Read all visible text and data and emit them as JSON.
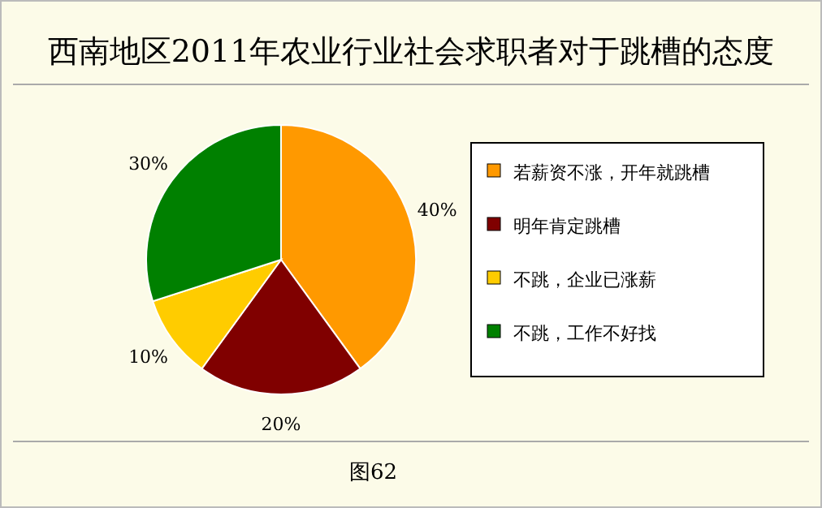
{
  "chart_data": {
    "type": "pie",
    "title": "西南地区2011年农业行业社会求职者对于跳槽的态度",
    "categories": [
      "若薪资不涨，开年就跳槽",
      "明年肯定跳槽",
      "不跳，企业已涨薪",
      "不跳，工作不好找"
    ],
    "values": [
      40,
      20,
      10,
      30
    ],
    "colors": [
      "#ff9900",
      "#800000",
      "#ffcc00",
      "#008000"
    ],
    "value_labels": [
      "40%",
      "20%",
      "10%",
      "30%"
    ],
    "legend": "right",
    "annotations": [
      "图62"
    ]
  }
}
